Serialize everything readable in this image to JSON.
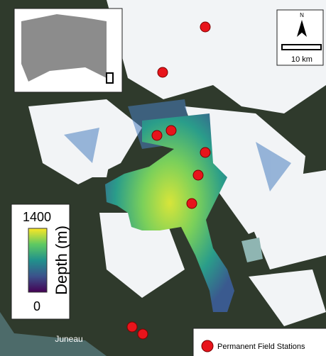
{
  "north_arrow": "N",
  "scale_bar": "10 km",
  "colorbar": {
    "max_label": "1400",
    "min_label": "0",
    "title": "Depth (m)"
  },
  "place_label": "Juneau",
  "legend": {
    "label": "Permanent Field Stations"
  }
}
